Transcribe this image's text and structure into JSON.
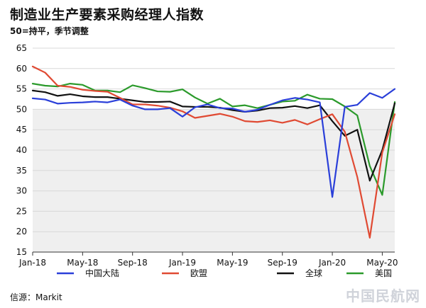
{
  "chart_data": {
    "type": "line",
    "title": "制造业生产要素采购经理人指数",
    "subtitle": "50=持平，季节调整",
    "source": "信源：Markit",
    "watermark": "中国民航网",
    "ylim": [
      15,
      65
    ],
    "yticks": [
      15,
      20,
      25,
      30,
      35,
      40,
      45,
      50,
      55,
      60,
      65
    ],
    "x_tick_labels": [
      "Jan-18",
      "May-18",
      "Sep-18",
      "Jan-19",
      "May-19",
      "Sep-19",
      "Jan-20",
      "May-20"
    ],
    "x_tick_index": [
      0,
      4,
      8,
      12,
      16,
      20,
      24,
      28
    ],
    "x": [
      "Jan-18",
      "Feb-18",
      "Mar-18",
      "Apr-18",
      "May-18",
      "Jun-18",
      "Jul-18",
      "Aug-18",
      "Sep-18",
      "Oct-18",
      "Nov-18",
      "Dec-18",
      "Jan-19",
      "Feb-19",
      "Mar-19",
      "Apr-19",
      "May-19",
      "Jun-19",
      "Jul-19",
      "Aug-19",
      "Sep-19",
      "Oct-19",
      "Nov-19",
      "Dec-19",
      "Jan-20",
      "Feb-20",
      "Mar-20",
      "Apr-20",
      "May-20",
      "Jun-20"
    ],
    "grid": true,
    "background_shaded": true,
    "legend_position": "bottom",
    "series": [
      {
        "name": "中国大陆",
        "color": "#2a3fd9",
        "values": [
          52.7,
          52.4,
          51.4,
          51.6,
          51.7,
          51.9,
          51.7,
          52.4,
          50.9,
          50.0,
          50.0,
          50.3,
          48.2,
          50.5,
          51.2,
          50.3,
          50.2,
          49.4,
          49.9,
          51.1,
          52.2,
          52.8,
          52.4,
          51.7,
          28.5,
          50.6,
          51.1,
          54.0,
          52.8,
          55.0
        ]
      },
      {
        "name": "欧盟",
        "color": "#e04a33",
        "values": [
          60.5,
          59.0,
          55.8,
          55.5,
          54.8,
          54.5,
          54.3,
          52.8,
          51.2,
          51.2,
          50.9,
          50.4,
          49.5,
          47.9,
          48.4,
          48.9,
          48.2,
          47.1,
          46.9,
          47.3,
          46.7,
          47.4,
          46.3,
          47.6,
          48.8,
          44.5,
          33.4,
          18.5,
          39.4,
          48.8
        ]
      },
      {
        "name": "全球",
        "color": "#111111",
        "values": [
          54.6,
          54.2,
          53.3,
          53.7,
          53.2,
          53.0,
          53.0,
          52.6,
          52.2,
          51.8,
          51.8,
          51.9,
          50.7,
          50.6,
          50.6,
          50.4,
          49.8,
          49.4,
          49.7,
          50.3,
          50.4,
          50.8,
          50.3,
          51.0,
          47.1,
          43.5,
          45.0,
          32.5,
          40.0,
          51.5
        ]
      },
      {
        "name": "美国",
        "color": "#2b9a2b",
        "values": [
          56.3,
          55.8,
          55.6,
          56.3,
          56.0,
          54.6,
          54.6,
          54.2,
          55.9,
          55.2,
          54.4,
          54.3,
          54.9,
          52.9,
          51.4,
          52.6,
          50.7,
          51.0,
          50.3,
          51.1,
          51.9,
          52.1,
          53.6,
          52.6,
          52.5,
          50.7,
          48.5,
          36.1,
          29.0,
          51.8
        ]
      }
    ]
  }
}
